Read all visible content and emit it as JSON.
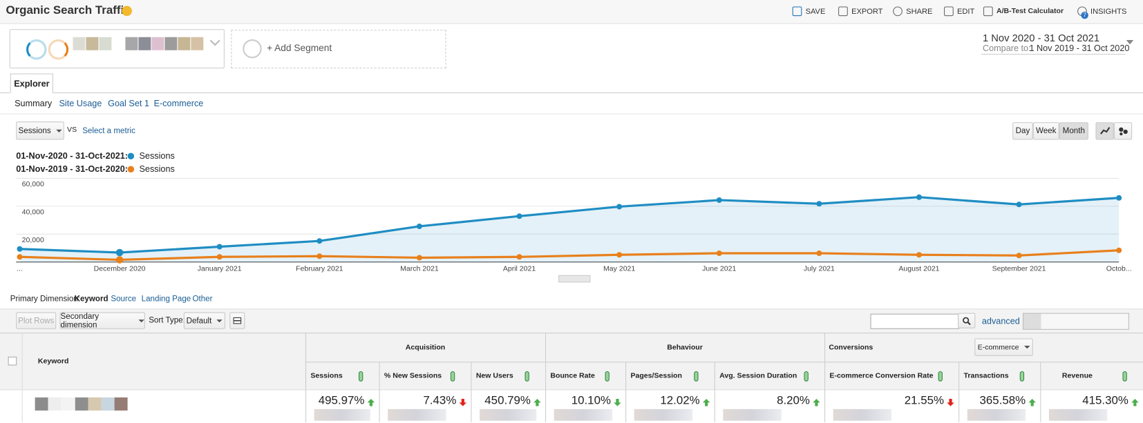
{
  "header": {
    "title": "Organic Search Traffic",
    "actions": [
      "SAVE",
      "EXPORT",
      "SHARE",
      "EDIT",
      "A/B-Test Calculator",
      "INSIGHTS"
    ],
    "insights_badge": "7"
  },
  "segments": {
    "add_segment": "+ Add Segment"
  },
  "date_range": {
    "current": "1 Nov 2020 - 31 Oct 2021",
    "compare_label": "Compare to:",
    "compare": "1 Nov 2019 - 31 Oct 2020"
  },
  "tabs": {
    "active": "Explorer",
    "subtabs": [
      "Summary",
      "Site Usage",
      "Goal Set 1",
      "E-commerce"
    ]
  },
  "metric_picker": {
    "metric": "Sessions",
    "vs": "VS",
    "select": "Select a metric"
  },
  "granularity": [
    "Day",
    "Week",
    "Month"
  ],
  "chart_data": {
    "type": "line",
    "categories": [
      "...",
      "December 2020",
      "January 2021",
      "February 2021",
      "March 2021",
      "April 2021",
      "May 2021",
      "June 2021",
      "July 2021",
      "August 2021",
      "September 2021",
      "Octob..."
    ],
    "series": [
      {
        "name": "Sessions",
        "period": "01-Nov-2020 - 31-Oct-2021:",
        "color": "#1f8dc3",
        "values": [
          9400,
          6800,
          11000,
          15100,
          25600,
          32900,
          39700,
          44400,
          41800,
          46500,
          41300,
          46000
        ]
      },
      {
        "name": "Sessions",
        "period": "01-Nov-2019 - 31-Oct-2020:",
        "color": "#e8801c",
        "values": [
          3700,
          1600,
          3700,
          4200,
          3100,
          3700,
          5200,
          6300,
          6300,
          5200,
          4700,
          8400
        ]
      }
    ],
    "ylim": [
      0,
      60000
    ],
    "yticks": [
      {
        "value": 20000,
        "label": "20,000"
      },
      {
        "value": 40000,
        "label": "40,000"
      },
      {
        "value": 60000,
        "label": "60,000"
      }
    ],
    "grid": true,
    "area": true
  },
  "dimensions": {
    "label": "Primary Dimension:",
    "options": [
      "Keyword",
      "Source",
      "Landing Page",
      "Other"
    ]
  },
  "toolbar": {
    "plot_rows": "Plot Rows",
    "secondary": "Secondary dimension",
    "sort_label": "Sort Type:",
    "sort": "Default",
    "advanced": "advanced"
  },
  "table": {
    "first_column": "Keyword",
    "groups": [
      "Acquisition",
      "Behaviour",
      "Conversions"
    ],
    "conversion_select": "E-commerce",
    "columns": [
      "Sessions",
      "% New Sessions",
      "New Users",
      "Bounce Rate",
      "Pages/Session",
      "Avg. Session Duration",
      "E-commerce Conversion Rate",
      "Transactions",
      "Revenue"
    ],
    "rows": [
      [
        "495.97%",
        "7.43%",
        "450.79%",
        "10.10%",
        "12.02%",
        "8.20%",
        "21.55%",
        "365.58%",
        "415.30%"
      ]
    ]
  }
}
